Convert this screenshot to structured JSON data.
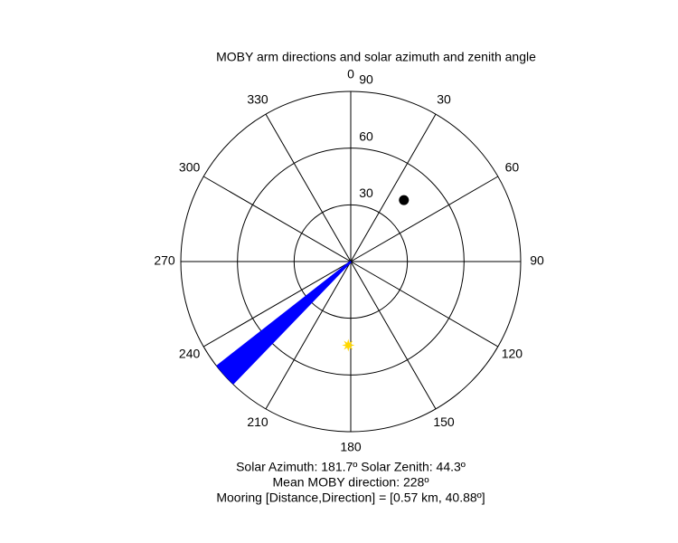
{
  "chart_data": {
    "type": "polar",
    "title": "MOBY arm directions and solar azimuth and zenith angle",
    "rlim": [
      0,
      90
    ],
    "rticks": [
      30,
      60,
      90
    ],
    "thetaticks": [
      0,
      30,
      60,
      90,
      120,
      150,
      180,
      210,
      240,
      270,
      300,
      330
    ],
    "grid": true,
    "series": [
      {
        "color": "#0000ff",
        "marker": "line",
        "theta": [
          224,
          224.5,
          225,
          225.5,
          226,
          226.5,
          227,
          227.5,
          228,
          228.5,
          229,
          229.5,
          230,
          230.5,
          231,
          231.5,
          232
        ],
        "r": [
          90,
          90,
          90,
          90,
          90,
          90,
          90,
          90,
          90,
          90,
          90,
          90,
          90,
          90,
          90,
          90,
          90
        ]
      },
      {
        "color": "#000000",
        "marker": "circle",
        "theta": [
          40.88
        ],
        "r": [
          43
        ]
      },
      {
        "color": "#ffd700",
        "marker": "star",
        "theta": [
          181.7
        ],
        "r": [
          44.3
        ]
      }
    ],
    "annotations": [
      "Solar Azimuth: 181.7º   Solar Zenith: 44.3º",
      "Mean MOBY direction: 228º",
      "Mooring [Distance,Direction] = [0.57 km, 40.88º]"
    ]
  }
}
